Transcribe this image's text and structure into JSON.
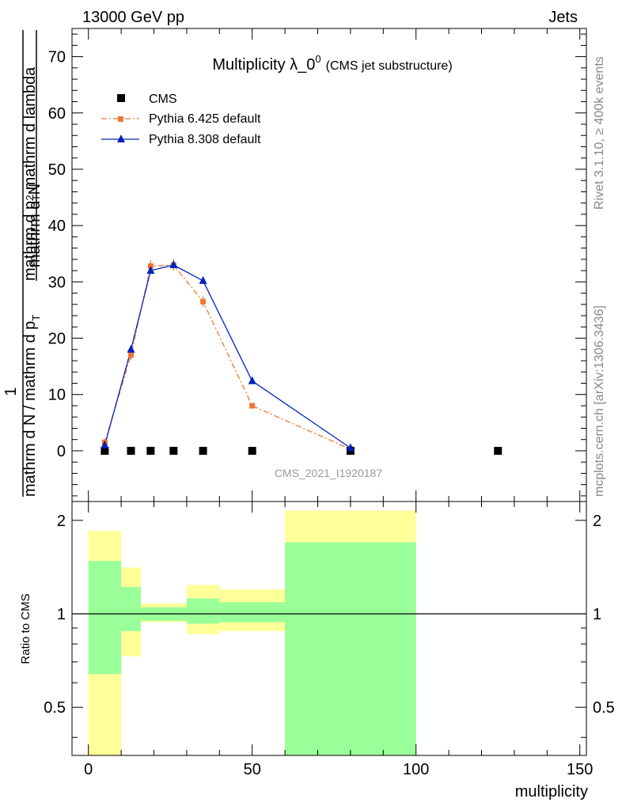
{
  "header": {
    "left": "13000 GeV pp",
    "right": "Jets"
  },
  "side_labels": {
    "rivet": "Rivet 3.1.10, ≥ 400k events",
    "mcplots": "mcplots.cern.ch [arXiv:1306.3436]"
  },
  "colors": {
    "cms": "#000000",
    "pythia6": "#ee7733",
    "pythia8": "#0022bb",
    "band_inner": "#99ff99",
    "band_outer": "#ffff99"
  },
  "chart_data": [
    {
      "type": "line",
      "title_main": "Multiplicity λ_0",
      "title_sup": "0",
      "title_sub": "(CMS jet substructure)",
      "watermark": "CMS_2021_I1920187",
      "ylabel": {
        "numer": "1",
        "denom": "mathrm d N / mathrm d p",
        "denom_sub": "T",
        "frac_numer": "mathrm d",
        "frac_numer_sup": "2",
        "frac_numer_tail": "N",
        "frac_denom": "mathrm d p",
        "frac_denom_sub": "T",
        "frac_denom_tail": " mathrm d lambda"
      },
      "xlim": [
        -5,
        152
      ],
      "ylim": [
        -9,
        75
      ],
      "yticks": [
        0,
        10,
        20,
        30,
        40,
        50,
        60,
        70
      ],
      "yticklabels": [
        "0",
        "10",
        "20",
        "30",
        "40",
        "50",
        "60",
        "70"
      ],
      "legend_position": "top-left",
      "series": [
        {
          "name": "CMS",
          "style": "square",
          "x": [
            5,
            13,
            19,
            26,
            35,
            50,
            80,
            125
          ],
          "y": [
            0,
            0,
            0,
            0,
            0,
            0,
            0,
            0
          ]
        },
        {
          "name": "Pythia 6.425 default",
          "style": "dashdot-square",
          "x": [
            5,
            13,
            19,
            26,
            35,
            50,
            80
          ],
          "y": [
            1.5,
            17,
            32.8,
            33,
            26.5,
            8,
            0.3
          ],
          "err": [
            0.6,
            0.8,
            1.0,
            1.0,
            0.9,
            0.4,
            0.1
          ]
        },
        {
          "name": "Pythia 8.308 default",
          "style": "solid-triangle",
          "x": [
            5,
            13,
            19,
            26,
            35,
            50,
            80
          ],
          "y": [
            1.0,
            18,
            32,
            33,
            30.2,
            12.4,
            0.5
          ]
        }
      ]
    },
    {
      "type": "area",
      "ylabel": "Ratio to CMS",
      "xlabel": "multiplicity",
      "xlim": [
        -5,
        152
      ],
      "ylim": [
        0.35,
        2.3
      ],
      "xticks": [
        0,
        50,
        100,
        150
      ],
      "xticklabels": [
        "0",
        "50",
        "100",
        "150"
      ],
      "yticks": [
        0.5,
        1,
        2
      ],
      "yticklabels": [
        "0.5",
        "1",
        "2"
      ],
      "reference_line": 1,
      "bands": [
        {
          "x0": 0,
          "x1": 10,
          "inner_lo": 0.64,
          "inner_hi": 1.48,
          "outer_lo": 0.35,
          "outer_hi": 1.85
        },
        {
          "x0": 10,
          "x1": 16,
          "inner_lo": 0.88,
          "inner_hi": 1.22,
          "outer_lo": 0.73,
          "outer_hi": 1.41
        },
        {
          "x0": 16,
          "x1": 30,
          "inner_lo": 0.95,
          "inner_hi": 1.05,
          "outer_lo": 0.94,
          "outer_hi": 1.08
        },
        {
          "x0": 30,
          "x1": 40,
          "inner_lo": 0.93,
          "inner_hi": 1.12,
          "outer_lo": 0.86,
          "outer_hi": 1.24
        },
        {
          "x0": 40,
          "x1": 60,
          "inner_lo": 0.94,
          "inner_hi": 1.09,
          "outer_lo": 0.88,
          "outer_hi": 1.2
        },
        {
          "x0": 60,
          "x1": 100,
          "inner_lo": 0.35,
          "inner_hi": 1.7,
          "outer_lo": 0.35,
          "outer_hi": 2.15
        }
      ]
    }
  ]
}
